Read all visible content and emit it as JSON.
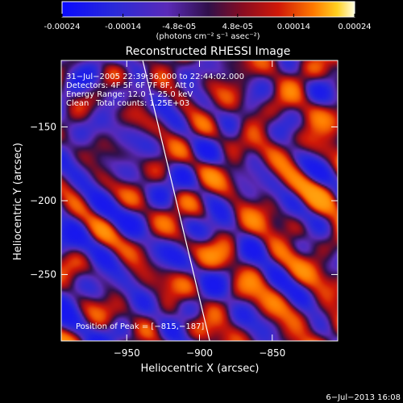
{
  "colorbar": {
    "tick_labels": [
      "-0.00024",
      "-0.00014",
      "-4.8e-05",
      "4.8e-05",
      "0.00014",
      "0.00024"
    ],
    "tick_values": [
      -0.00024,
      -0.00014,
      -4.8e-05,
      4.8e-05,
      0.00014,
      0.00024
    ],
    "range": [
      -0.00024,
      0.00024
    ],
    "unit_label": "(photons cm⁻² s⁻¹ asec⁻²)"
  },
  "chart_data": {
    "type": "heatmap",
    "title": "Reconstructed RHESSI Image",
    "xlabel": "Heliocentric X (arcsec)",
    "ylabel": "Heliocentric Y (arcsec)",
    "xlim": [
      -995,
      -805
    ],
    "ylim": [
      -295,
      -105
    ],
    "x_ticks": [
      -950,
      -900,
      -850
    ],
    "x_tick_labels": [
      "−950",
      "−900",
      "−850"
    ],
    "y_ticks": [
      -150,
      -200,
      -250
    ],
    "y_tick_labels": [
      "−150",
      "−200",
      "−250"
    ],
    "limb_line": [
      [
        -939,
        -105
      ],
      [
        -893,
        -295
      ]
    ],
    "peak_position": [
      -815,
      -187
    ],
    "annotations": {
      "time_range": "31−Jul−2005 22:39:36.000 to 22:44:02.000",
      "detectors": "Detectors: 4F 5F 6F 7F 8F, Att 0",
      "energy": "Energy Range: 12.0 − 25.0 keV",
      "method": "Clean",
      "counts": "Total counts: 1.25E+03",
      "peak": "Position of Peak = [−815,−187]"
    },
    "colorscale": [
      [
        0.0,
        "#0a0aff"
      ],
      [
        0.18,
        "#2a2ad8"
      ],
      [
        0.36,
        "#5a2ab8"
      ],
      [
        0.5,
        "#30104a"
      ],
      [
        0.62,
        "#8a0c20"
      ],
      [
        0.74,
        "#d01808"
      ],
      [
        0.86,
        "#ff7a00"
      ],
      [
        0.94,
        "#ffd020"
      ],
      [
        1.0,
        "#ffffe0"
      ]
    ]
  },
  "footer": {
    "date": "6−Jul−2013 16:08"
  }
}
